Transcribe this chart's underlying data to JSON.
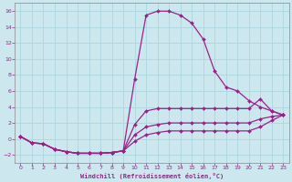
{
  "background_color": "#cce8ee",
  "grid_color": "#b0d8e0",
  "line_color": "#992288",
  "marker_color": "#992288",
  "xlabel": "Windchill (Refroidissement éolien,°C)",
  "xlabel_color": "#992288",
  "tick_color": "#992288",
  "xlim": [
    -0.5,
    23.5
  ],
  "ylim": [
    -3.0,
    17.0
  ],
  "yticks": [
    -2,
    0,
    2,
    4,
    6,
    8,
    10,
    12,
    14,
    16
  ],
  "xticks": [
    0,
    1,
    2,
    3,
    4,
    5,
    6,
    7,
    8,
    9,
    10,
    11,
    12,
    13,
    14,
    15,
    16,
    17,
    18,
    19,
    20,
    21,
    22,
    23
  ],
  "curve1_x": [
    0,
    1,
    2,
    3,
    4,
    5,
    6,
    7,
    8,
    9,
    10,
    11,
    12,
    13,
    14,
    15,
    16,
    17,
    18,
    19,
    20,
    21,
    22,
    23
  ],
  "curve1_y": [
    0.3,
    -0.5,
    -0.6,
    -1.3,
    -1.6,
    -1.8,
    -1.8,
    -1.8,
    -1.7,
    -1.5,
    7.5,
    15.5,
    16.0,
    16.0,
    15.5,
    14.5,
    12.5,
    8.5,
    6.5,
    6.0,
    4.8,
    4.0,
    3.5,
    3.0
  ],
  "curve2_x": [
    0,
    1,
    2,
    3,
    4,
    5,
    6,
    7,
    8,
    9,
    10,
    11,
    12,
    13,
    14,
    15,
    16,
    17,
    18,
    19,
    20,
    21,
    22,
    23
  ],
  "curve2_y": [
    0.3,
    -0.5,
    -0.6,
    -1.3,
    -1.6,
    -1.8,
    -1.8,
    -1.8,
    -1.7,
    -1.5,
    1.8,
    3.5,
    3.8,
    3.8,
    3.8,
    3.8,
    3.8,
    3.8,
    3.8,
    3.8,
    3.8,
    5.0,
    3.5,
    3.0
  ],
  "curve3_x": [
    0,
    1,
    2,
    3,
    4,
    5,
    6,
    7,
    8,
    9,
    10,
    11,
    12,
    13,
    14,
    15,
    16,
    17,
    18,
    19,
    20,
    21,
    22,
    23
  ],
  "curve3_y": [
    0.3,
    -0.5,
    -0.6,
    -1.3,
    -1.6,
    -1.8,
    -1.8,
    -1.8,
    -1.7,
    -1.5,
    0.5,
    1.5,
    1.8,
    2.0,
    2.0,
    2.0,
    2.0,
    2.0,
    2.0,
    2.0,
    2.0,
    2.5,
    2.8,
    3.0
  ],
  "curve4_x": [
    0,
    1,
    2,
    3,
    4,
    5,
    6,
    7,
    8,
    9,
    10,
    11,
    12,
    13,
    14,
    15,
    16,
    17,
    18,
    19,
    20,
    21,
    22,
    23
  ],
  "curve4_y": [
    0.3,
    -0.5,
    -0.6,
    -1.3,
    -1.6,
    -1.8,
    -1.8,
    -1.8,
    -1.7,
    -1.5,
    -0.3,
    0.5,
    0.8,
    1.0,
    1.0,
    1.0,
    1.0,
    1.0,
    1.0,
    1.0,
    1.0,
    1.5,
    2.3,
    3.0
  ]
}
